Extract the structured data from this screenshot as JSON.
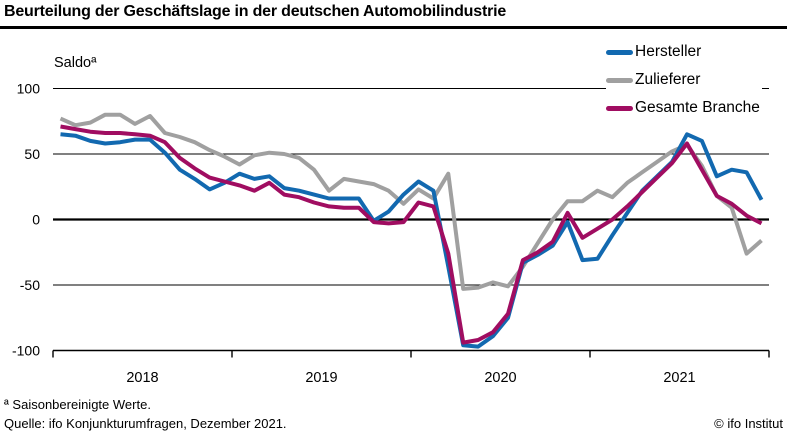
{
  "title": "Beurteilung der Geschäftslage in der deutschen Automobilindustrie",
  "footnotes": {
    "note": "ª Saisonbereinigte Werte.",
    "source": "Quelle: ifo Konjunkturumfragen, Dezember 2021.",
    "copyright": "© ifo Institut"
  },
  "chart_data": {
    "type": "line",
    "title": "Beurteilung der Geschäftslage in der deutschen Automobilindustrie",
    "ylabel": "Saldoª",
    "x_unit": "month",
    "x_start": "2018-01",
    "x_end": "2021-12",
    "x_tick_labels": [
      "2018",
      "2019",
      "2020",
      "2021"
    ],
    "y_ticks": [
      100,
      50,
      0,
      -50,
      -100
    ],
    "y_tick_labels": [
      "100",
      "50",
      "0",
      "-50",
      "-100"
    ],
    "ylim": [
      -113,
      113
    ],
    "grid": "horizontal",
    "zero_line_emphasized": true,
    "legend_position": "top-right",
    "axis_color": "#000000",
    "series": [
      {
        "name": "Hersteller",
        "color": "#1269b0",
        "values": [
          65,
          64,
          60,
          58,
          59,
          61,
          61,
          51,
          38,
          31,
          23,
          28,
          35,
          31,
          33,
          24,
          22,
          19,
          16,
          16,
          16,
          -1,
          6,
          19,
          29,
          22,
          -36,
          -96,
          -97,
          -89,
          -75,
          -33,
          -27,
          -20,
          -2,
          -31,
          -30,
          -12,
          5,
          22,
          33,
          44,
          65,
          60,
          33,
          38,
          36,
          15
        ]
      },
      {
        "name": "Zulieferer",
        "color": "#a0a0a0",
        "values": [
          77,
          72,
          74,
          80,
          80,
          73,
          79,
          66,
          63,
          59,
          53,
          48,
          42,
          49,
          51,
          50,
          47,
          38,
          22,
          31,
          29,
          27,
          22,
          12,
          23,
          16,
          35,
          -53,
          -52,
          -48,
          -51,
          -36,
          -18,
          0,
          14,
          14,
          22,
          17,
          28,
          36,
          44,
          52,
          57,
          41,
          18,
          9,
          -26,
          -16
        ]
      },
      {
        "name": "Gesamte Branche",
        "color": "#a00d61",
        "values": [
          71,
          69,
          67,
          66,
          66,
          65,
          64,
          59,
          47,
          39,
          32,
          29,
          26,
          22,
          28,
          19,
          17,
          13,
          10,
          9,
          9,
          -2,
          -3,
          -2,
          13,
          10,
          -26,
          -94,
          -92,
          -86,
          -72,
          -31,
          -25,
          -17,
          5,
          -14,
          -7,
          0,
          10,
          21,
          32,
          43,
          58,
          38,
          18,
          12,
          3,
          -3
        ]
      }
    ]
  }
}
